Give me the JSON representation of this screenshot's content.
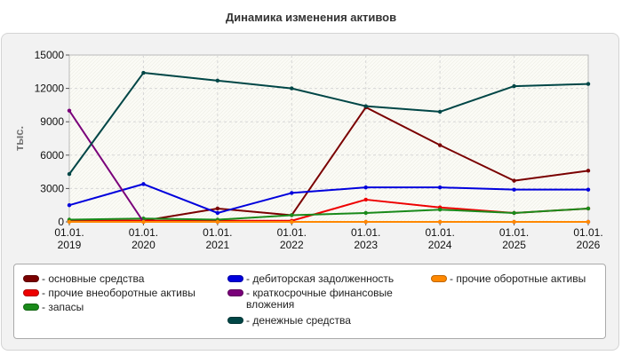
{
  "chart_data": {
    "type": "line",
    "title": "Динамика изменения активов",
    "ylabel": "тыс.",
    "xlabel": "",
    "x": [
      "01.01.\n2019",
      "01.01.\n2020",
      "01.01.\n2021",
      "01.01.\n2022",
      "01.01.\n2023",
      "01.01.\n2024",
      "01.01.\n2025",
      "01.01.\n2026"
    ],
    "ylim": [
      0,
      15000
    ],
    "yticks": [
      0,
      3000,
      6000,
      9000,
      12000,
      15000
    ],
    "grid": true,
    "legend_position": "bottom",
    "series": [
      {
        "name": "- основные средства",
        "color": "#7a0000",
        "values": [
          100,
          100,
          1200,
          600,
          10300,
          6900,
          3700,
          4600
        ]
      },
      {
        "name": "- прочие внеоборотные активы",
        "color": "#ee0000",
        "values": [
          100,
          100,
          100,
          100,
          2000,
          1300,
          800,
          1200
        ]
      },
      {
        "name": "- запасы",
        "color": "#1a8a1a",
        "values": [
          200,
          300,
          200,
          600,
          800,
          1100,
          800,
          1200
        ]
      },
      {
        "name": "- дебиторская задолженность",
        "color": "#0000dd",
        "values": [
          1500,
          3400,
          800,
          2600,
          3100,
          3100,
          2900,
          2900
        ]
      },
      {
        "name": "- краткосрочные финансовые вложения",
        "color": "#7a007a",
        "values": [
          10000,
          0,
          0,
          0,
          0,
          0,
          0,
          0
        ]
      },
      {
        "name": "- денежные средства",
        "color": "#004646",
        "values": [
          4300,
          13400,
          12700,
          12000,
          10400,
          9900,
          12200,
          12400
        ]
      },
      {
        "name": "- прочие оборотные активы",
        "color": "#ff8800",
        "values": [
          0,
          0,
          0,
          0,
          0,
          0,
          0,
          0
        ]
      }
    ]
  }
}
